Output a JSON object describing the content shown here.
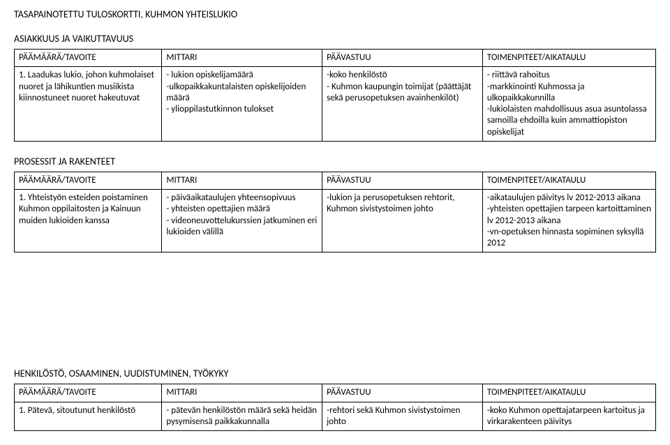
{
  "title": "TASAPAINOTETTU TULOSKORTTI, KUHMON YHTEISLUKIO",
  "section1": {
    "heading": "ASIAKKUUS JA VAIKUTTAVUUS",
    "headers": [
      "PÄÄMÄÄRÄ/TAVOITE",
      "MITTARI",
      "PÄÄVASTUU",
      "TOIMENPITEET/AIKATAULU"
    ],
    "row": {
      "c0": "1. Laadukas lukio, johon kuhmolaiset nuoret ja lähikuntien musiikista kiinnostuneet nuoret hakeutuvat",
      "c1": "- lukion opiskelijamäärä\n-ulkopaikkakuntalaisten opiskelijoiden määrä\n- ylioppilastutkinnon tulokset",
      "c2": "-koko henkilöstö\n- Kuhmon kaupungin toimijat (päättäjät sekä perusopetuksen avainhenkilöt)",
      "c3": "- riittävä rahoitus\n-markkinointi Kuhmossa ja ulkopaikkakunnilla\n-lukiolaisten mahdollisuus asua asuntolassa samoilla ehdoilla kuin ammattiopiston opiskelijat"
    }
  },
  "section2": {
    "heading": "PROSESSIT JA RAKENTEET",
    "headers": [
      "PÄÄMÄÄRÄ/TAVOITE",
      "MITTARI",
      "PÄÄVASTUU",
      "TOIMENPITEET/AIKATAULU"
    ],
    "row": {
      "c0": "1. Yhteistyön esteiden poistaminen Kuhmon oppilaitosten ja Kainuun muiden lukioiden kanssa",
      "c1": "- päiväaikataulujen yhteensopivuus\n- yhteisten opettajien määrä\n- videoneuvottelukurssien jatkuminen eri lukioiden välillä",
      "c2": "-lukion ja perusopetuksen rehtorit, Kuhmon sivistystoimen johto",
      "c3": "-aikataulujen päivitys lv 2012-2013 aikana\n-yhteisten opettajien tarpeen kartoittaminen lv 2012-2013 aikana\n-vn-opetuksen hinnasta sopiminen syksyllä 2012"
    }
  },
  "section3": {
    "heading": "HENKILÖSTÖ, OSAAMINEN, UUDISTUMINEN, TYÖKYKY",
    "headers": [
      "PÄÄMÄÄRÄ/TAVOITE",
      "MITTARI",
      "PÄÄVASTUU",
      "TOIMENPITEET/AIKATAULU"
    ],
    "row": {
      "c0": "1. Pätevä, sitoutunut henkilöstö",
      "c1": "- pätevän henkilöstön määrä sekä heidän pysymisensä paikkakunnalla",
      "c2": "-rehtori sekä Kuhmon sivistystoimen johto",
      "c3": "-koko Kuhmon opettajatarpeen kartoitus ja virkarakenteen päivitys"
    }
  }
}
